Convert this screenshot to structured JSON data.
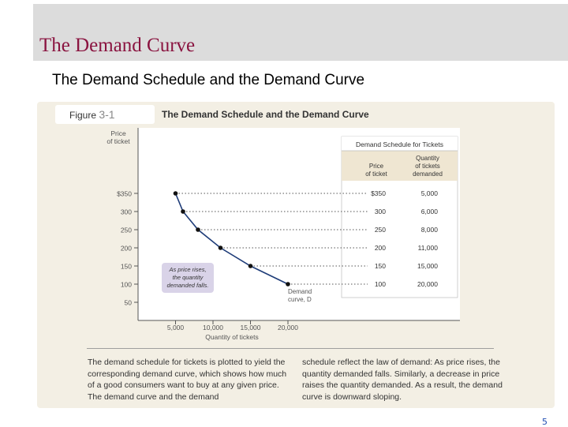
{
  "slide": {
    "title": "The Demand Curve",
    "subtitle": "The Demand Schedule and the Demand Curve",
    "page_number": "5"
  },
  "figure": {
    "label": "Figure",
    "number": "3-1",
    "title": "The Demand Schedule and the Demand Curve",
    "caption_left": "The demand schedule for tickets is plotted to yield the corresponding demand curve, which shows how much of a good consumers want to buy at any given price. The demand curve and the demand",
    "caption_right": "schedule reflect the law of demand: As price rises, the quantity demanded falls. Similarly, a decrease in price raises the quantity demanded. As a result, the demand curve is downward sloping."
  },
  "chart_data": {
    "type": "line",
    "title": "The Demand Schedule and the Demand Curve",
    "xlabel": "Quantity of tickets",
    "ylabel": "Price of ticket",
    "xlim": [
      0,
      25000
    ],
    "ylim": [
      0,
      350
    ],
    "x_ticks": [
      "5,000",
      "10,000",
      "15,000",
      "20,000"
    ],
    "x_tick_values": [
      5000,
      10000,
      15000,
      20000
    ],
    "y_ticks": [
      "$350",
      "300",
      "250",
      "200",
      "150",
      "100",
      "50"
    ],
    "y_tick_values": [
      350,
      300,
      250,
      200,
      150,
      100,
      50
    ],
    "series": [
      {
        "name": "Demand curve, D",
        "color": "#1e3c78",
        "points": [
          {
            "x": 5000,
            "y": 350
          },
          {
            "x": 6000,
            "y": 300
          },
          {
            "x": 8000,
            "y": 250
          },
          {
            "x": 11000,
            "y": 200
          },
          {
            "x": 15000,
            "y": 150
          },
          {
            "x": 20000,
            "y": 100
          }
        ]
      }
    ],
    "annotations": {
      "callout": "As price rises, the quantity demanded falls.",
      "curve_label": "Demand curve, D"
    },
    "table": {
      "title": "Demand Schedule for Tickets",
      "headers": [
        "Price of ticket",
        "Quantity of tickets demanded"
      ],
      "rows": [
        [
          "$350",
          "5,000"
        ],
        [
          "300",
          "6,000"
        ],
        [
          "250",
          "8,000"
        ],
        [
          "200",
          "11,000"
        ],
        [
          "150",
          "15,000"
        ],
        [
          "100",
          "20,000"
        ]
      ]
    }
  },
  "colors": {
    "title": "#8a1440",
    "header_band": "#dcdcdc",
    "figure_bg": "#f3efe4",
    "table_header": "#efe6d2",
    "callout_bg": "#d9d3e8",
    "curve": "#1e3c78",
    "page_number": "#1f4db3"
  }
}
